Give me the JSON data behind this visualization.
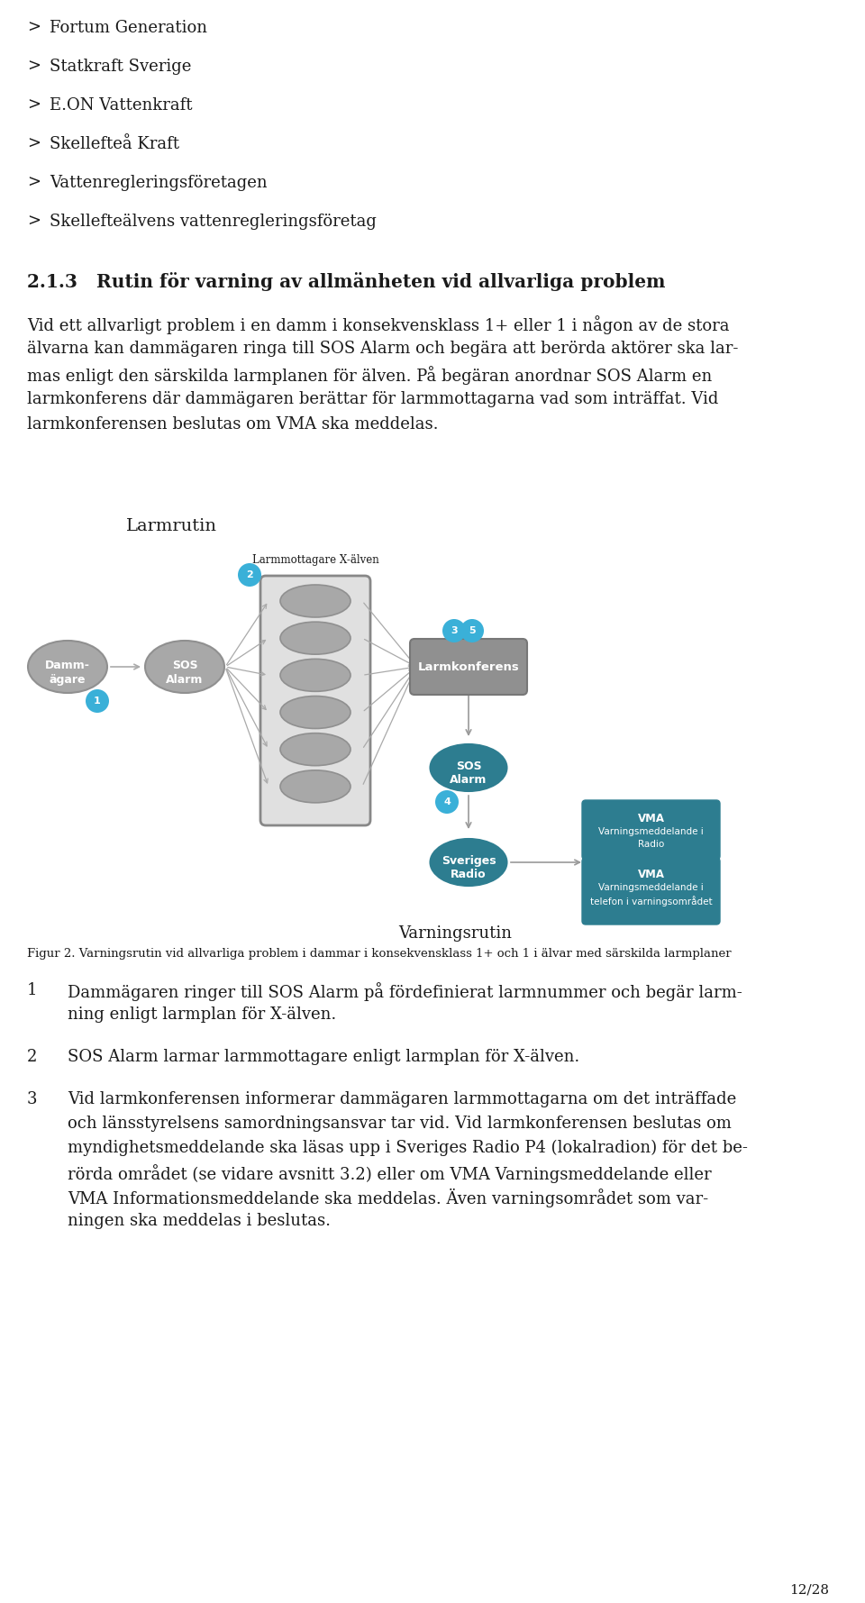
{
  "bg_color": "#ffffff",
  "text_color": "#1a1a1a",
  "bullet_items": [
    "Fortum Generation",
    "Statkraft Sverige",
    "E.ON Vattenkraft",
    "Skellefteå Kraft",
    "Vattenregleringsföretagen",
    "Skellefteälvens vattenregleringsföretag"
  ],
  "section_title": "2.1.3   Rutin för varning av allmänheten vid allvarliga problem",
  "section_body_lines": [
    "Vid ett allvarligt problem i en damm i konsekvensklass 1+ eller 1 i någon av de stora",
    "älvarna kan dammägaren ringa till SOS Alarm och begära att berörda aktörer ska lar-",
    "mas enligt den särskilda larmplanen för älven. På begäran anordnar SOS Alarm en",
    "larmkonferens där dammägaren berättar för larmmottagarna vad som inträffat. Vid",
    "larmkonferensen beslutas om VMA ska meddelas."
  ],
  "fig_caption": "Figur 2. Varningsrutin vid allvarliga problem i dammar i konsekvensklass 1+ och 1 i älvar med särskilda larmplaner",
  "numbered_items": [
    [
      "Dammägaren ringer till SOS Alarm på fördefinierat larmnummer och begär larm-",
      "ning enligt larmplan för X-älven."
    ],
    [
      "SOS Alarm larmar larmmottagare enligt larmplan för X-älven."
    ],
    [
      "Vid larmkonferensen informerar dammägaren larmmottagarna om det inträffade",
      "och länsstyrelsens samordningsansvar tar vid. Vid larmkonferensen beslutas om",
      "myndighetsmeddelande ska läsas upp i Sveriges Radio P4 (lokalradion) för det be-",
      "rörda området (se vidare avsnitt 3.2) eller om VMA Varningsmeddelande eller",
      "VMA Informationsmeddelande ska meddelas. Även varningsområdet som var-",
      "ningen ska meddelas i beslutas."
    ]
  ],
  "page_number": "12/28",
  "gray_node": "#a8a8a8",
  "gray_node_edge": "#909090",
  "dark_teal": "#2d7d90",
  "cyan_circle": "#3ab0d8",
  "larm_box_color": "#909090",
  "vma_color": "#2d7d90",
  "larm_rect_bg": "#e0e0e0",
  "larm_rect_edge": "#aaaaaa",
  "arrow_color": "#aaaaaa"
}
